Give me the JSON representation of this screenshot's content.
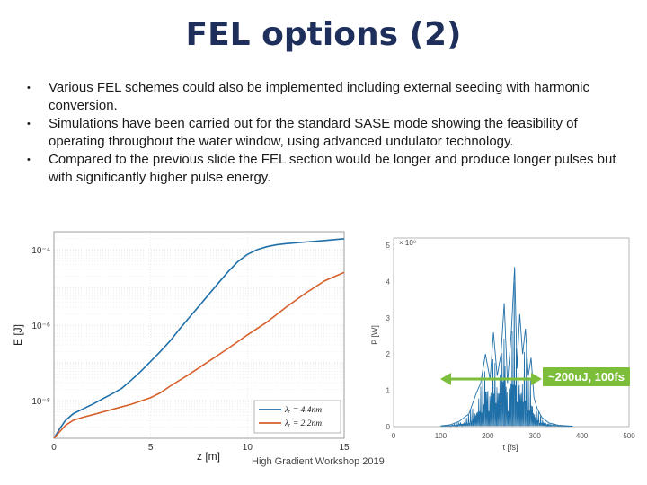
{
  "slide": {
    "title": "FEL options (2)",
    "bullets": [
      "Various FEL schemes could also be implemented including external seeding with harmonic conversion.",
      "Simulations have been carried out for the standard SASE mode showing the feasibility of operating throughout the water window, using advanced undulator technology.",
      "Compared to the previous slide the FEL section would be longer and produce longer pulses but with significantly higher pulse energy."
    ],
    "footer": "High Gradient Workshop 2019",
    "annotation": "~200uJ, 100fs"
  },
  "chart_data": [
    {
      "type": "line",
      "xlabel": "z [m]",
      "ylabel": "E [J]",
      "xlim": [
        0,
        15
      ],
      "ylim": [
        1e-09,
        0.0003
      ],
      "yscale": "log",
      "grid": true,
      "legend": "bottom-right",
      "xticks": [
        0,
        5,
        10,
        15
      ],
      "yticks": [
        {
          "value": 0.0001,
          "label": "10⁻⁴"
        },
        {
          "value": 1e-06,
          "label": "10⁻⁶"
        },
        {
          "value": 1e-08,
          "label": "10⁻⁸"
        }
      ],
      "series": [
        {
          "name": "λᵣ = 4.4nm",
          "color": "#1f6fa8",
          "x": [
            0,
            0.3,
            0.6,
            1,
            1.5,
            2,
            2.5,
            3,
            3.5,
            4,
            4.5,
            5,
            5.5,
            6,
            6.5,
            7,
            7.5,
            8,
            8.5,
            9,
            9.5,
            10,
            10.5,
            11,
            11.5,
            12,
            13,
            14,
            15
          ],
          "y": [
            1e-09,
            1.8e-09,
            3e-09,
            4.5e-09,
            6e-09,
            8e-09,
            1.1e-08,
            1.5e-08,
            2.1e-08,
            3.5e-08,
            6e-08,
            1.1e-07,
            2e-07,
            3.8e-07,
            8e-07,
            1.6e-06,
            3.2e-06,
            6.5e-06,
            1.3e-05,
            2.6e-05,
            4.8e-05,
            7.5e-05,
            0.0001,
            0.00012,
            0.000135,
            0.000145,
            0.00016,
            0.000175,
            0.000195
          ]
        },
        {
          "name": "λᵣ = 2.2nm",
          "color": "#d6602a",
          "x": [
            0,
            0.3,
            0.6,
            1,
            1.5,
            2,
            3,
            4,
            5,
            5.5,
            6,
            7,
            8,
            9,
            10,
            11,
            12,
            13,
            14,
            15
          ],
          "y": [
            1e-09,
            1.5e-09,
            2.2e-09,
            3e-09,
            3.6e-09,
            4.2e-09,
            5.8e-09,
            8e-09,
            1.2e-08,
            1.6e-08,
            2.4e-08,
            5e-08,
            1.1e-07,
            2.4e-07,
            5.5e-07,
            1.2e-06,
            3e-06,
            7e-06,
            1.5e-05,
            2.5e-05
          ]
        }
      ]
    },
    {
      "type": "line",
      "xlabel": "t [fs]",
      "ylabel": "P [W]",
      "xlim": [
        0,
        500
      ],
      "ylim": [
        0,
        5.2
      ],
      "y_multiplier": "× 10⁹",
      "xticks": [
        0,
        100,
        200,
        300,
        400,
        500
      ],
      "yticks": [
        0,
        1,
        2,
        3,
        4,
        5
      ],
      "series": [
        {
          "color": "#1f6fa8",
          "x": [
            100,
            120,
            140,
            160,
            175,
            185,
            195,
            205,
            212,
            220,
            228,
            235,
            242,
            250,
            257,
            262,
            268,
            274,
            280,
            286,
            292,
            298,
            305,
            315,
            330,
            350,
            380
          ],
          "y": [
            0.02,
            0.05,
            0.15,
            0.35,
            0.9,
            1.2,
            2.0,
            1.3,
            2.6,
            1.4,
            2.0,
            3.4,
            1.2,
            2.6,
            4.4,
            1.6,
            3.1,
            2.0,
            2.7,
            1.4,
            1.9,
            0.8,
            0.5,
            0.25,
            0.1,
            0.04,
            0.01
          ]
        }
      ]
    }
  ]
}
